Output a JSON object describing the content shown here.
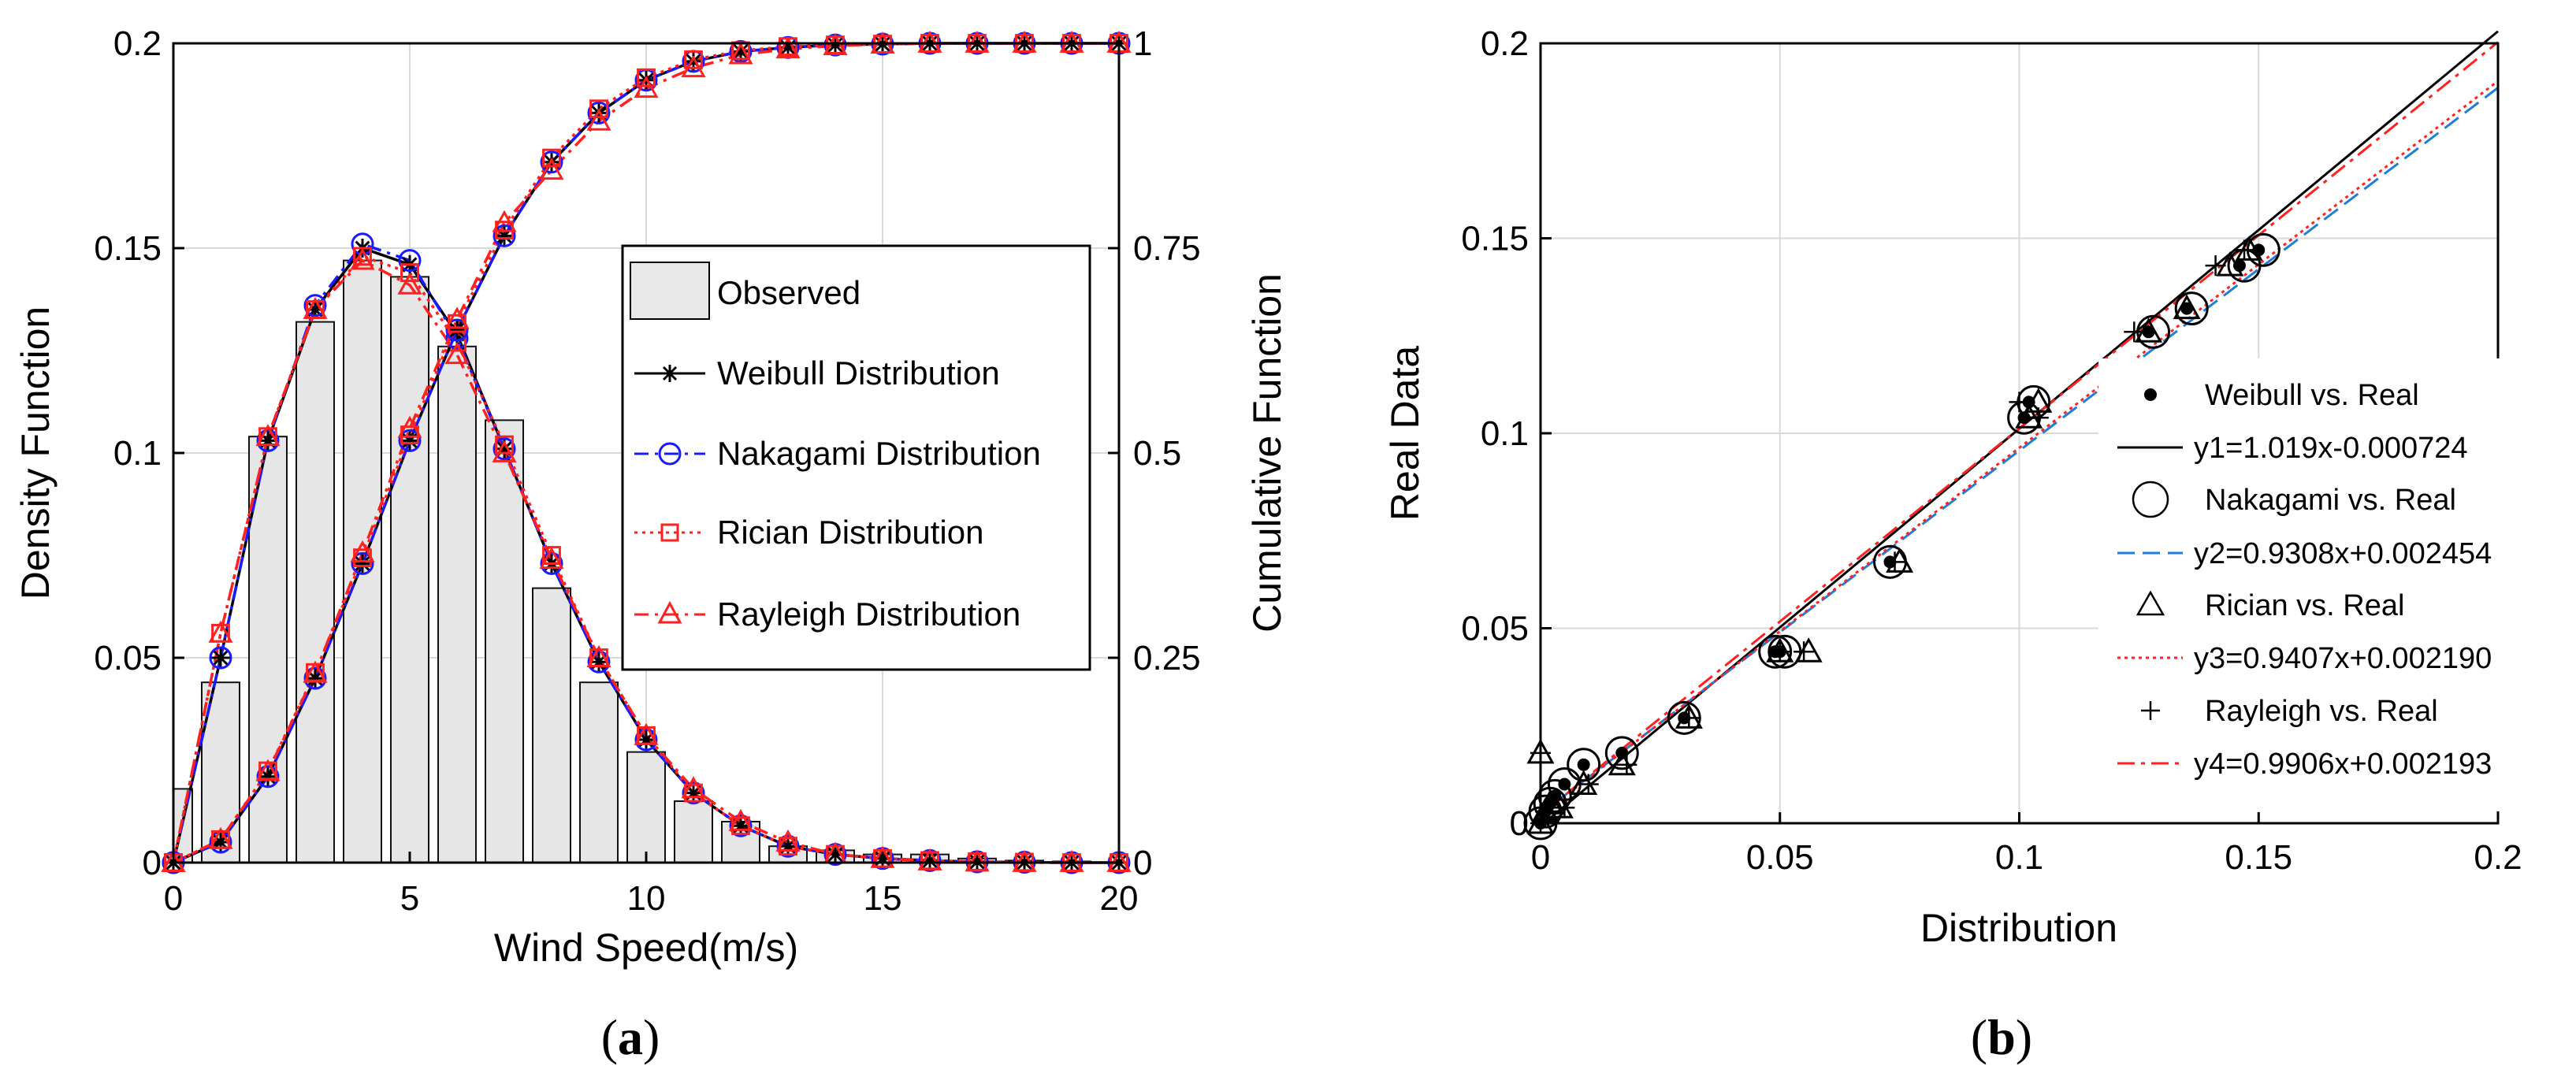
{
  "panels": {
    "a": {
      "open": "(",
      "letter": "a",
      "close": ")"
    },
    "b": {
      "open": "(",
      "letter": "b",
      "close": ")"
    }
  },
  "chart_data": [
    {
      "id": "a",
      "type": "bar+line",
      "title": "",
      "xlabel": "Wind Speed(m/s)",
      "ylabel": "Density Function",
      "y2label": "Cumulative Function",
      "xlim": [
        0,
        20
      ],
      "ylim": [
        0,
        0.2
      ],
      "y2lim": [
        0,
        1
      ],
      "xticks": [
        "0",
        "5",
        "10",
        "15",
        "20"
      ],
      "yticks": [
        "0",
        "0.05",
        "0.1",
        "0.15",
        "0.2"
      ],
      "y2ticks": [
        "0",
        "0.25",
        "0.5",
        "0.75",
        "1"
      ],
      "grid": true,
      "legend_position": "center-right",
      "histogram": {
        "name": "Observed",
        "bin_width": 0.8,
        "centers": [
          0,
          1,
          2,
          3,
          4,
          5,
          6,
          7,
          8,
          9,
          10,
          11,
          12,
          13,
          14,
          15,
          16,
          17,
          18,
          19
        ],
        "values": [
          0.018,
          0.044,
          0.104,
          0.132,
          0.147,
          0.143,
          0.126,
          0.108,
          0.067,
          0.044,
          0.027,
          0.015,
          0.01,
          0.004,
          0.003,
          0.002,
          0.002,
          0.001,
          0.0005,
          0.0003
        ]
      },
      "x": [
        0,
        1,
        2,
        3,
        4,
        5,
        6,
        7,
        8,
        9,
        10,
        11,
        12,
        13,
        14,
        15,
        16,
        17,
        18,
        19,
        20
      ],
      "pdf_series": [
        {
          "name": "Weibull Distribution",
          "color": "#000000",
          "marker": "star",
          "dash": "",
          "values": [
            0.0,
            0.05,
            0.103,
            0.135,
            0.15,
            0.146,
            0.129,
            0.101,
            0.073,
            0.049,
            0.03,
            0.017,
            0.009,
            0.004,
            0.002,
            0.001,
            0.0005,
            0.0002,
            0.0001,
            0.0,
            0.0
          ]
        },
        {
          "name": "Nakagami Distribution",
          "color": "#1a1aff",
          "marker": "circle",
          "dash": "18,8,4,8",
          "values": [
            0.0,
            0.05,
            0.103,
            0.136,
            0.151,
            0.147,
            0.128,
            0.101,
            0.073,
            0.049,
            0.03,
            0.017,
            0.009,
            0.004,
            0.002,
            0.001,
            0.0005,
            0.0002,
            0.0001,
            0.0,
            0.0
          ]
        },
        {
          "name": "Rician Distribution",
          "color": "#ff2020",
          "marker": "square",
          "dash": "4,6",
          "values": [
            0.0,
            0.056,
            0.104,
            0.135,
            0.148,
            0.144,
            0.127,
            0.102,
            0.075,
            0.05,
            0.031,
            0.017,
            0.009,
            0.004,
            0.002,
            0.001,
            0.0005,
            0.0002,
            0.0001,
            0.0,
            0.0
          ]
        },
        {
          "name": "Rayleigh Distribution",
          "color": "#ff2020",
          "marker": "triangle",
          "dash": "18,8,4,8",
          "values": [
            0.0,
            0.056,
            0.104,
            0.135,
            0.147,
            0.141,
            0.124,
            0.1,
            0.074,
            0.05,
            0.031,
            0.018,
            0.01,
            0.005,
            0.002,
            0.001,
            0.0004,
            0.0001,
            0.0,
            0.0,
            0.0
          ]
        }
      ],
      "cdf_series": [
        {
          "name": "Weibull Distribution",
          "color": "#000000",
          "marker": "star",
          "dash": "",
          "values": [
            0.0,
            0.025,
            0.105,
            0.225,
            0.365,
            0.515,
            0.65,
            0.765,
            0.855,
            0.915,
            0.955,
            0.978,
            0.99,
            0.995,
            0.998,
            0.999,
            1.0,
            1.0,
            1.0,
            1.0,
            1.0
          ]
        },
        {
          "name": "Nakagami Distribution",
          "color": "#1a1aff",
          "marker": "circle",
          "dash": "18,8,4,8",
          "values": [
            0.0,
            0.025,
            0.105,
            0.225,
            0.365,
            0.515,
            0.65,
            0.765,
            0.855,
            0.915,
            0.955,
            0.978,
            0.99,
            0.995,
            0.998,
            0.999,
            1.0,
            1.0,
            1.0,
            1.0,
            1.0
          ]
        },
        {
          "name": "Rician Distribution",
          "color": "#ff2020",
          "marker": "square",
          "dash": "4,6",
          "values": [
            0.0,
            0.028,
            0.112,
            0.232,
            0.372,
            0.522,
            0.658,
            0.772,
            0.86,
            0.92,
            0.958,
            0.98,
            0.991,
            0.996,
            0.998,
            0.999,
            1.0,
            1.0,
            1.0,
            1.0,
            1.0
          ]
        },
        {
          "name": "Rayleigh Distribution",
          "color": "#ff2020",
          "marker": "triangle",
          "dash": "18,8,4,8",
          "values": [
            0.0,
            0.028,
            0.111,
            0.231,
            0.378,
            0.53,
            0.663,
            0.781,
            0.845,
            0.905,
            0.945,
            0.97,
            0.986,
            0.993,
            0.997,
            0.999,
            1.0,
            1.0,
            1.0,
            1.0,
            1.0
          ]
        }
      ]
    },
    {
      "id": "b",
      "type": "scatter",
      "title": "",
      "xlabel": "Distribution",
      "ylabel": "Real Data",
      "xlim": [
        0,
        0.2
      ],
      "ylim": [
        0,
        0.2
      ],
      "xticks": [
        "0",
        "0.05",
        "0.1",
        "0.15",
        "0.2"
      ],
      "yticks": [
        "0",
        "0.05",
        "0.1",
        "0.15",
        "0.2"
      ],
      "grid": true,
      "legend_position": "center-right",
      "series": [
        {
          "name": "Weibull vs. Real",
          "marker": "dot",
          "color": "#000000",
          "x": [
            0.0,
            0.001,
            0.002,
            0.003,
            0.005,
            0.009,
            0.017,
            0.03,
            0.049,
            0.05,
            0.073,
            0.101,
            0.102,
            0.127,
            0.135,
            0.146,
            0.15
          ],
          "y": [
            0.0,
            0.003,
            0.005,
            0.007,
            0.01,
            0.015,
            0.018,
            0.027,
            0.044,
            0.044,
            0.067,
            0.104,
            0.108,
            0.126,
            0.132,
            0.143,
            0.147
          ]
        },
        {
          "name": "Nakagami vs. Real",
          "marker": "circle",
          "color": "#000000",
          "x": [
            0.0,
            0.001,
            0.002,
            0.003,
            0.005,
            0.009,
            0.017,
            0.03,
            0.049,
            0.051,
            0.073,
            0.101,
            0.103,
            0.128,
            0.136,
            0.147,
            0.151
          ],
          "y": [
            0.0,
            0.003,
            0.005,
            0.007,
            0.01,
            0.015,
            0.018,
            0.027,
            0.044,
            0.044,
            0.067,
            0.104,
            0.108,
            0.126,
            0.132,
            0.143,
            0.147
          ]
        },
        {
          "name": "Rician vs. Real",
          "marker": "triangle",
          "color": "#000000",
          "x": [
            0.0,
            0.001,
            0.002,
            0.004,
            0.009,
            0.017,
            0.031,
            0.05,
            0.056,
            0.075,
            0.102,
            0.104,
            0.127,
            0.135,
            0.144,
            0.148,
            0.0
          ],
          "y": [
            0.0,
            0.003,
            0.005,
            0.004,
            0.01,
            0.015,
            0.027,
            0.044,
            0.044,
            0.067,
            0.104,
            0.108,
            0.126,
            0.132,
            0.143,
            0.147,
            0.018
          ]
        },
        {
          "name": "Rayleigh vs. Real",
          "marker": "plus",
          "color": "#000000",
          "x": [
            0.0,
            0.001,
            0.002,
            0.005,
            0.01,
            0.018,
            0.031,
            0.05,
            0.055,
            0.074,
            0.1,
            0.104,
            0.124,
            0.141,
            0.147,
            0.0
          ],
          "y": [
            0.0,
            0.003,
            0.005,
            0.004,
            0.01,
            0.015,
            0.027,
            0.044,
            0.044,
            0.067,
            0.108,
            0.104,
            0.126,
            0.143,
            0.147,
            0.018
          ]
        }
      ],
      "fits": [
        {
          "name": "y1=1.019x-0.000724",
          "slope": 1.019,
          "intercept": -0.000724,
          "color": "#000000",
          "dash": ""
        },
        {
          "name": "y2=0.9308x+0.002454",
          "slope": 0.9308,
          "intercept": 0.002454,
          "color": "#1e7fd8",
          "dash": "22,10"
        },
        {
          "name": "y3=0.9407x+0.002190",
          "slope": 0.9407,
          "intercept": 0.00219,
          "color": "#ff2020",
          "dash": "4,5"
        },
        {
          "name": "y4=0.9906x+0.002193",
          "slope": 0.9906,
          "intercept": 0.002193,
          "color": "#ff2020",
          "dash": "22,8,5,8"
        }
      ]
    }
  ]
}
